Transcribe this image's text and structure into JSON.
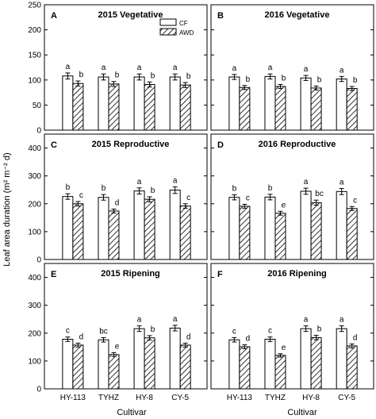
{
  "ylabel": "Leaf area duration (m² m⁻² d)",
  "xlabel": "Cultivar",
  "legend": {
    "cf": "CF",
    "awd": "AWD"
  },
  "colors": {
    "cf_fill": "#ffffff",
    "awd_hatch": "#000000",
    "frame": "#000000"
  },
  "chart_data": [
    {
      "type": "bar",
      "panel_letter": "A",
      "title": "2015 Vegetative",
      "categories": [
        "HY-113",
        "TYHZ",
        "HY-8",
        "CY-5"
      ],
      "ylim": [
        0,
        250
      ],
      "yticks": [
        0,
        50,
        100,
        150,
        200,
        250
      ],
      "series": [
        {
          "name": "CF",
          "values": [
            108,
            106,
            106,
            106
          ],
          "errors": [
            6,
            6,
            6,
            6
          ],
          "letters": [
            "a",
            "a",
            "a",
            "a"
          ]
        },
        {
          "name": "AWD",
          "values": [
            93,
            92,
            91,
            90
          ],
          "errors": [
            5,
            5,
            5,
            5
          ],
          "letters": [
            "b",
            "b",
            "b",
            "b"
          ]
        }
      ]
    },
    {
      "type": "bar",
      "panel_letter": "B",
      "title": "2016 Vegetative",
      "categories": [
        "HY-113",
        "TYHZ",
        "HY-8",
        "CY-5"
      ],
      "ylim": [
        0,
        250
      ],
      "yticks": [
        0,
        50,
        100,
        150,
        200,
        250
      ],
      "series": [
        {
          "name": "CF",
          "values": [
            106,
            107,
            104,
            102
          ],
          "errors": [
            5,
            5,
            5,
            5
          ],
          "letters": [
            "a",
            "a",
            "a",
            "a"
          ]
        },
        {
          "name": "AWD",
          "values": [
            85,
            87,
            84,
            83
          ],
          "errors": [
            4,
            4,
            4,
            4
          ],
          "letters": [
            "b",
            "b",
            "b",
            "b"
          ]
        }
      ]
    },
    {
      "type": "bar",
      "panel_letter": "C",
      "title": "2015 Reproductive",
      "categories": [
        "HY-113",
        "TYHZ",
        "HY-8",
        "CY-5"
      ],
      "ylim": [
        0,
        450
      ],
      "yticks": [
        0,
        100,
        200,
        300,
        400
      ],
      "series": [
        {
          "name": "CF",
          "values": [
            226,
            223,
            246,
            249
          ],
          "errors": [
            10,
            10,
            11,
            12
          ],
          "letters": [
            "b",
            "b",
            "a",
            "a"
          ]
        },
        {
          "name": "AWD",
          "values": [
            200,
            174,
            216,
            192
          ],
          "errors": [
            8,
            7,
            9,
            8
          ],
          "letters": [
            "c",
            "d",
            "b",
            "c"
          ]
        }
      ]
    },
    {
      "type": "bar",
      "panel_letter": "D",
      "title": "2016 Reproductive",
      "categories": [
        "HY-113",
        "TYHZ",
        "HY-8",
        "CY-5"
      ],
      "ylim": [
        0,
        450
      ],
      "yticks": [
        0,
        100,
        200,
        300,
        400
      ],
      "series": [
        {
          "name": "CF",
          "values": [
            223,
            224,
            245,
            244
          ],
          "errors": [
            9,
            10,
            11,
            11
          ],
          "letters": [
            "b",
            "b",
            "a",
            "a"
          ]
        },
        {
          "name": "AWD",
          "values": [
            191,
            166,
            204,
            183
          ],
          "errors": [
            7,
            7,
            9,
            7
          ],
          "letters": [
            "c",
            "e",
            "bc",
            "c"
          ]
        }
      ]
    },
    {
      "type": "bar",
      "panel_letter": "E",
      "title": "2015 Ripening",
      "categories": [
        "HY-113",
        "TYHZ",
        "HY-8",
        "CY-5"
      ],
      "ylim": [
        0,
        450
      ],
      "yticks": [
        0,
        100,
        200,
        300,
        400
      ],
      "series": [
        {
          "name": "CF",
          "values": [
            178,
            176,
            216,
            218
          ],
          "errors": [
            8,
            8,
            10,
            10
          ],
          "letters": [
            "c",
            "bc",
            "a",
            "a"
          ]
        },
        {
          "name": "AWD",
          "values": [
            157,
            123,
            183,
            157
          ],
          "errors": [
            7,
            7,
            8,
            7
          ],
          "letters": [
            "d",
            "e",
            "b",
            "d"
          ]
        }
      ]
    },
    {
      "type": "bar",
      "panel_letter": "F",
      "title": "2016 Ripening",
      "categories": [
        "HY-113",
        "TYHZ",
        "HY-8",
        "CY-5"
      ],
      "ylim": [
        0,
        450
      ],
      "yticks": [
        0,
        100,
        200,
        300,
        400
      ],
      "series": [
        {
          "name": "CF",
          "values": [
            176,
            178,
            216,
            216
          ],
          "errors": [
            8,
            8,
            10,
            10
          ],
          "letters": [
            "c",
            "c",
            "a",
            "a"
          ]
        },
        {
          "name": "AWD",
          "values": [
            151,
            120,
            184,
            154
          ],
          "errors": [
            7,
            6,
            8,
            7
          ],
          "letters": [
            "d",
            "e",
            "b",
            "d"
          ]
        }
      ]
    }
  ]
}
